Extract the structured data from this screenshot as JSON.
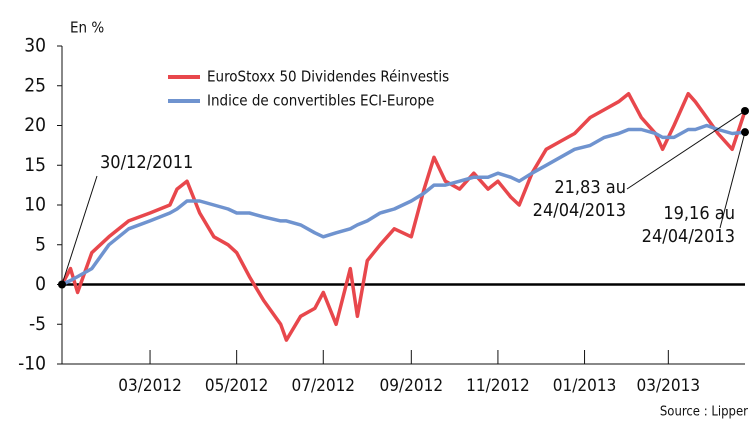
{
  "chart_data": {
    "type": "line",
    "y_label": "En %",
    "source": "Source : Lipper",
    "x": [
      "2011-12-30",
      "2012-01-05",
      "2012-01-10",
      "2012-01-20",
      "2012-02-01",
      "2012-02-15",
      "2012-03-01",
      "2012-03-15",
      "2012-03-20",
      "2012-03-27",
      "2012-04-05",
      "2012-04-15",
      "2012-04-25",
      "2012-05-01",
      "2012-05-10",
      "2012-05-20",
      "2012-06-01",
      "2012-06-05",
      "2012-06-15",
      "2012-06-25",
      "2012-07-01",
      "2012-07-10",
      "2012-07-20",
      "2012-07-25",
      "2012-08-01",
      "2012-08-10",
      "2012-08-20",
      "2012-09-01",
      "2012-09-10",
      "2012-09-17",
      "2012-09-25",
      "2012-10-05",
      "2012-10-15",
      "2012-10-25",
      "2012-11-01",
      "2012-11-10",
      "2012-11-16",
      "2012-11-25",
      "2012-12-05",
      "2012-12-15",
      "2012-12-25",
      "2013-01-05",
      "2013-01-15",
      "2013-01-25",
      "2013-02-01",
      "2013-02-10",
      "2013-02-20",
      "2013-02-25",
      "2013-03-05",
      "2013-03-15",
      "2013-03-20",
      "2013-03-28",
      "2013-04-05",
      "2013-04-15",
      "2013-04-24"
    ],
    "series": [
      {
        "name": "EuroStoxx 50 Dividendes Réinvestis",
        "color": "#e8474c",
        "values": [
          0,
          2,
          -1,
          4,
          6,
          8,
          9,
          10,
          12,
          13,
          9,
          6,
          5,
          4,
          1,
          -2,
          -5,
          -7,
          -4,
          -3,
          -1,
          -5,
          2,
          -4,
          3,
          5,
          7,
          6,
          12,
          16,
          13,
          12,
          14,
          12,
          13,
          11,
          10,
          14,
          17,
          18,
          19,
          21,
          22,
          23,
          24,
          21,
          19,
          17,
          20,
          24,
          23,
          21,
          19,
          17,
          21.83
        ]
      },
      {
        "name": "Indice de convertibles ECI-Europe",
        "color": "#6f93cf",
        "values": [
          0,
          0.5,
          1,
          2,
          5,
          7,
          8,
          9,
          9.5,
          10.5,
          10.5,
          10,
          9.5,
          9,
          9,
          8.5,
          8,
          8,
          7.5,
          6.5,
          6,
          6.5,
          7,
          7.5,
          8,
          9,
          9.5,
          10.5,
          11.5,
          12.5,
          12.5,
          13,
          13.5,
          13.5,
          14,
          13.5,
          13,
          14,
          15,
          16,
          17,
          17.5,
          18.5,
          19,
          19.5,
          19.5,
          19,
          18.5,
          18.5,
          19.5,
          19.5,
          20,
          19.5,
          19,
          19.16
        ]
      }
    ],
    "xlim": [
      "2011-12-30",
      "2013-04-24"
    ],
    "xticks": [
      {
        "value": "2012-03-01",
        "label": "03/2012"
      },
      {
        "value": "2012-05-01",
        "label": "05/2012"
      },
      {
        "value": "2012-07-01",
        "label": "07/2012"
      },
      {
        "value": "2012-09-01",
        "label": "09/2012"
      },
      {
        "value": "2012-11-01",
        "label": "11/2012"
      },
      {
        "value": "2013-01-01",
        "label": "01/2013"
      },
      {
        "value": "2013-03-01",
        "label": "03/2013"
      }
    ],
    "ylim": [
      -10,
      30
    ],
    "yticks": [
      -10,
      -5,
      0,
      5,
      10,
      15,
      20,
      25,
      30
    ],
    "annotations": [
      {
        "lines": [
          "30/12/2011"
        ]
      },
      {
        "lines": [
          "21,83 au",
          "24/04/2013"
        ]
      },
      {
        "lines": [
          "19,16 au",
          "24/04/2013"
        ]
      }
    ]
  }
}
